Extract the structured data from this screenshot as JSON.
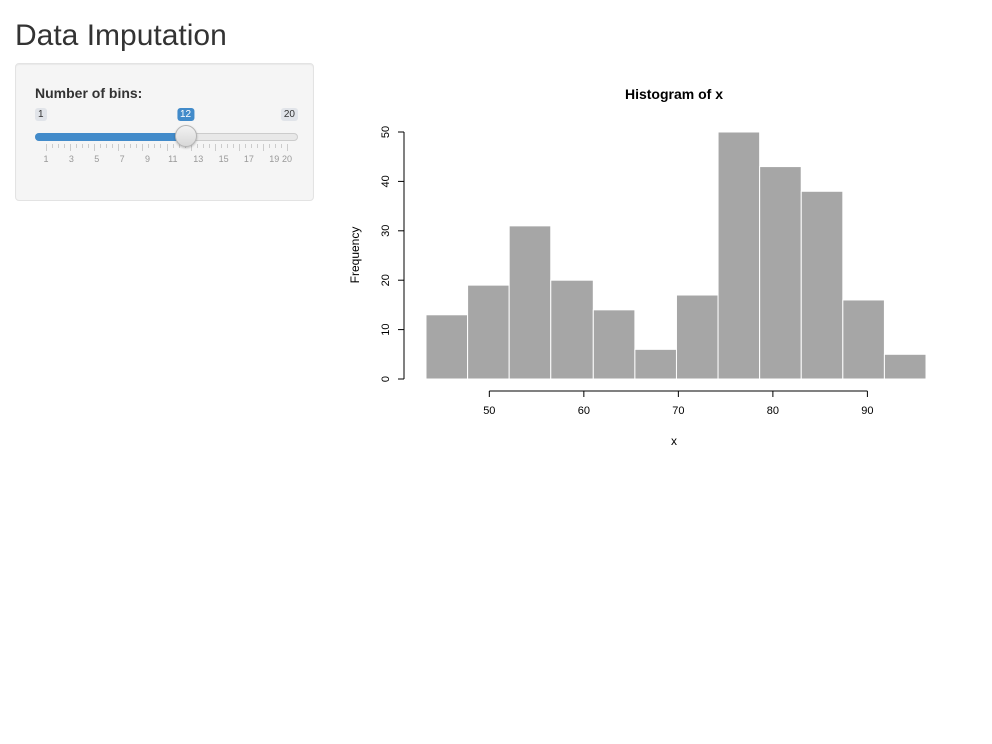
{
  "app": {
    "title": "Data Imputation"
  },
  "sidebar": {
    "bins_slider": {
      "label": "Number of bins:",
      "min": 1,
      "max": 20,
      "value": 12,
      "min_label": "1",
      "max_label": "20",
      "value_label": "12",
      "tick_labels": [
        "1",
        "3",
        "5",
        "7",
        "9",
        "11",
        "13",
        "15",
        "17",
        "19",
        "20"
      ],
      "accent_color": "#428bca"
    }
  },
  "chart_data": {
    "type": "bar",
    "title": "Histogram of x",
    "xlabel": "x",
    "ylabel": "Frequency",
    "bin_edges": [
      43.3,
      47.7,
      52.1,
      56.5,
      61.0,
      65.4,
      69.8,
      74.2,
      78.6,
      83.0,
      87.4,
      91.8,
      96.2
    ],
    "values": [
      13,
      19,
      31,
      20,
      14,
      6,
      17,
      50,
      43,
      38,
      16,
      5
    ],
    "xlim": [
      43.3,
      96.2
    ],
    "ylim": [
      0,
      50
    ],
    "x_ticks": [
      "50",
      "60",
      "70",
      "80",
      "90"
    ],
    "y_ticks": [
      "0",
      "10",
      "20",
      "30",
      "40",
      "50"
    ],
    "bar_color": "#a6a6a6",
    "grid": false
  }
}
